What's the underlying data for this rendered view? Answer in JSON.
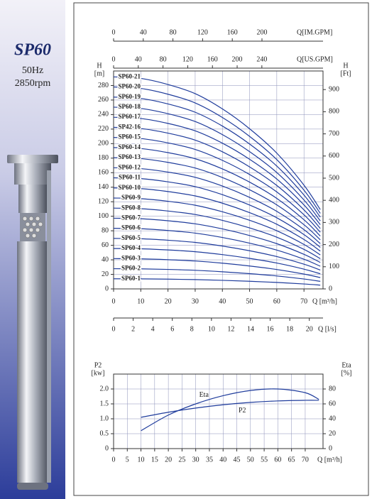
{
  "brochure": {
    "model": "SP60",
    "frequency": "50Hz",
    "speed": "2850rpm"
  },
  "chart_data": [
    {
      "type": "line",
      "x_label": "Q [m³/h]",
      "y_label": "H",
      "y_unit": "[m]",
      "y2_label": "H",
      "y2_unit": "[Ft]",
      "x": [
        0,
        10,
        20,
        30,
        40,
        50,
        60,
        70,
        76
      ],
      "xlim": [
        0,
        77
      ],
      "xticks": [
        0,
        10,
        20,
        30,
        40,
        50,
        60,
        70
      ],
      "ylim": [
        0,
        300
      ],
      "yticks": [
        0,
        20,
        40,
        60,
        80,
        100,
        120,
        140,
        160,
        180,
        200,
        220,
        240,
        260,
        280
      ],
      "y2lim": [
        0,
        984
      ],
      "y2ticks": [
        0,
        100,
        200,
        300,
        400,
        500,
        600,
        700,
        800,
        900
      ],
      "secondary_x_axes": [
        {
          "label": "Q[IM.GPM]",
          "lim": [
            0,
            282.3
          ],
          "ticks": [
            0,
            40,
            80,
            120,
            160,
            200
          ],
          "position": "top"
        },
        {
          "label": "Q[US.GPM]",
          "lim": [
            0,
            339
          ],
          "ticks": [
            0,
            40,
            80,
            120,
            160,
            200,
            240
          ],
          "position": "top"
        },
        {
          "label": "Q [l/s]",
          "lim": [
            0,
            21.4
          ],
          "ticks": [
            0,
            2,
            4,
            6,
            8,
            10,
            12,
            14,
            16,
            18,
            20
          ],
          "position": "bottom"
        }
      ],
      "grid": true,
      "series": [
        {
          "name": "SP60-1",
          "color": "#1f3c9c",
          "values": [
            13.9,
            13.8,
            13.4,
            12.8,
            11.8,
            10.5,
            8.9,
            6.8,
            5.2
          ]
        },
        {
          "name": "SP60-2",
          "color": "#1f3c9c",
          "values": [
            27.8,
            27.6,
            26.8,
            25.6,
            23.6,
            21,
            17.8,
            13.6,
            10.4
          ]
        },
        {
          "name": "SP60-3",
          "color": "#1f3c9c",
          "values": [
            41.7,
            41.4,
            40.2,
            38.4,
            35.4,
            31.5,
            26.7,
            20.4,
            15.6
          ]
        },
        {
          "name": "SP60-4",
          "color": "#1f3c9c",
          "values": [
            55.6,
            55.2,
            53.6,
            51.2,
            47.2,
            42,
            35.6,
            27.2,
            20.8
          ]
        },
        {
          "name": "SP60-5",
          "color": "#1f3c9c",
          "values": [
            69.5,
            69,
            67,
            64,
            59,
            52.5,
            44.5,
            34,
            26
          ]
        },
        {
          "name": "SP60-6",
          "color": "#1f3c9c",
          "values": [
            83.4,
            82.8,
            80.4,
            76.8,
            70.8,
            63,
            53.4,
            40.8,
            31.2
          ]
        },
        {
          "name": "SP60-7",
          "color": "#1f3c9c",
          "values": [
            97.3,
            96.6,
            93.8,
            89.6,
            82.6,
            73.5,
            62.3,
            47.6,
            36.4
          ]
        },
        {
          "name": "SP60-8",
          "color": "#1f3c9c",
          "values": [
            111.2,
            110.4,
            107.2,
            102.4,
            94.4,
            84,
            71.2,
            54.4,
            41.6
          ]
        },
        {
          "name": "SP60-9",
          "color": "#1f3c9c",
          "values": [
            125.1,
            124.2,
            120.6,
            115.2,
            106.2,
            94.5,
            80.1,
            61.2,
            46.8
          ]
        },
        {
          "name": "SP60-10",
          "color": "#1f3c9c",
          "values": [
            139,
            138,
            134,
            128,
            118,
            105,
            89,
            68,
            52
          ]
        },
        {
          "name": "SP60-11",
          "color": "#1f3c9c",
          "values": [
            152.9,
            151.8,
            147.4,
            140.8,
            129.8,
            115.5,
            97.9,
            74.8,
            57.2
          ]
        },
        {
          "name": "SP60-12",
          "color": "#1f3c9c",
          "values": [
            166.8,
            165.6,
            160.8,
            153.6,
            141.6,
            126,
            106.8,
            81.6,
            62.4
          ]
        },
        {
          "name": "SP60-13",
          "color": "#1f3c9c",
          "values": [
            180.7,
            179.4,
            174.2,
            166.4,
            153.4,
            136.5,
            115.7,
            88.4,
            67.6
          ]
        },
        {
          "name": "SP60-14",
          "color": "#1f3c9c",
          "values": [
            194.6,
            193.2,
            187.6,
            179.2,
            165.2,
            147,
            124.6,
            95.2,
            72.8
          ]
        },
        {
          "name": "SP60-15",
          "color": "#1f3c9c",
          "values": [
            208.5,
            207,
            201,
            192,
            177,
            157.5,
            133.5,
            102,
            78
          ]
        },
        {
          "name": "SP42-16",
          "color": "#1f3c9c",
          "values": [
            222.4,
            220.8,
            214.4,
            204.8,
            188.8,
            168,
            142.4,
            108.8,
            83.2
          ]
        },
        {
          "name": "SP60-17",
          "color": "#1f3c9c",
          "values": [
            236.3,
            234.6,
            227.8,
            217.6,
            200.6,
            178.5,
            151.3,
            115.6,
            88.4
          ]
        },
        {
          "name": "SP60-18",
          "color": "#1f3c9c",
          "values": [
            250.2,
            248.4,
            241.2,
            230.4,
            212.4,
            189,
            160.2,
            122.4,
            93.6
          ]
        },
        {
          "name": "SP60-19",
          "color": "#1f3c9c",
          "values": [
            264.1,
            262.2,
            254.6,
            243.2,
            224.2,
            199.5,
            169.1,
            129.2,
            98.8
          ]
        },
        {
          "name": "SP60-20",
          "color": "#1f3c9c",
          "values": [
            278,
            276,
            268,
            256,
            236,
            210,
            178,
            136,
            104
          ]
        },
        {
          "name": "SP60-21",
          "color": "#1f3c9c",
          "values": [
            291.9,
            289.8,
            281.4,
            268.8,
            247.8,
            220.5,
            186.9,
            142.8,
            109.2
          ]
        }
      ]
    },
    {
      "type": "line",
      "x_label": "Q [m³/h]",
      "y_label": "P2",
      "y_unit": "[kw]",
      "y2_label": "Eta",
      "y2_unit": "[%]",
      "x": [
        10,
        20,
        30,
        40,
        50,
        60,
        70,
        75
      ],
      "xlim": [
        0,
        76.5
      ],
      "xticks": [
        0,
        5,
        10,
        15,
        20,
        25,
        30,
        35,
        40,
        45,
        50,
        55,
        60,
        65,
        70
      ],
      "ylim": [
        0,
        2.5
      ],
      "yticks": [
        0,
        0.5,
        {
          "value": 1,
          "label": "1.0"
        },
        1.5,
        {
          "value": 2,
          "label": "2.0"
        }
      ],
      "y2lim": [
        0,
        100
      ],
      "y2ticks": [
        0,
        20,
        40,
        60,
        80
      ],
      "grid": true,
      "series": [
        {
          "name": "Eta",
          "color": "#1f3c9c",
          "axis": "y2",
          "values": [
            24,
            45,
            60,
            71,
            78,
            80,
            75,
            66
          ]
        },
        {
          "name": "P2",
          "color": "#1f3c9c",
          "values": [
            1.05,
            1.22,
            1.36,
            1.47,
            1.55,
            1.6,
            1.62,
            1.62
          ]
        }
      ]
    }
  ]
}
